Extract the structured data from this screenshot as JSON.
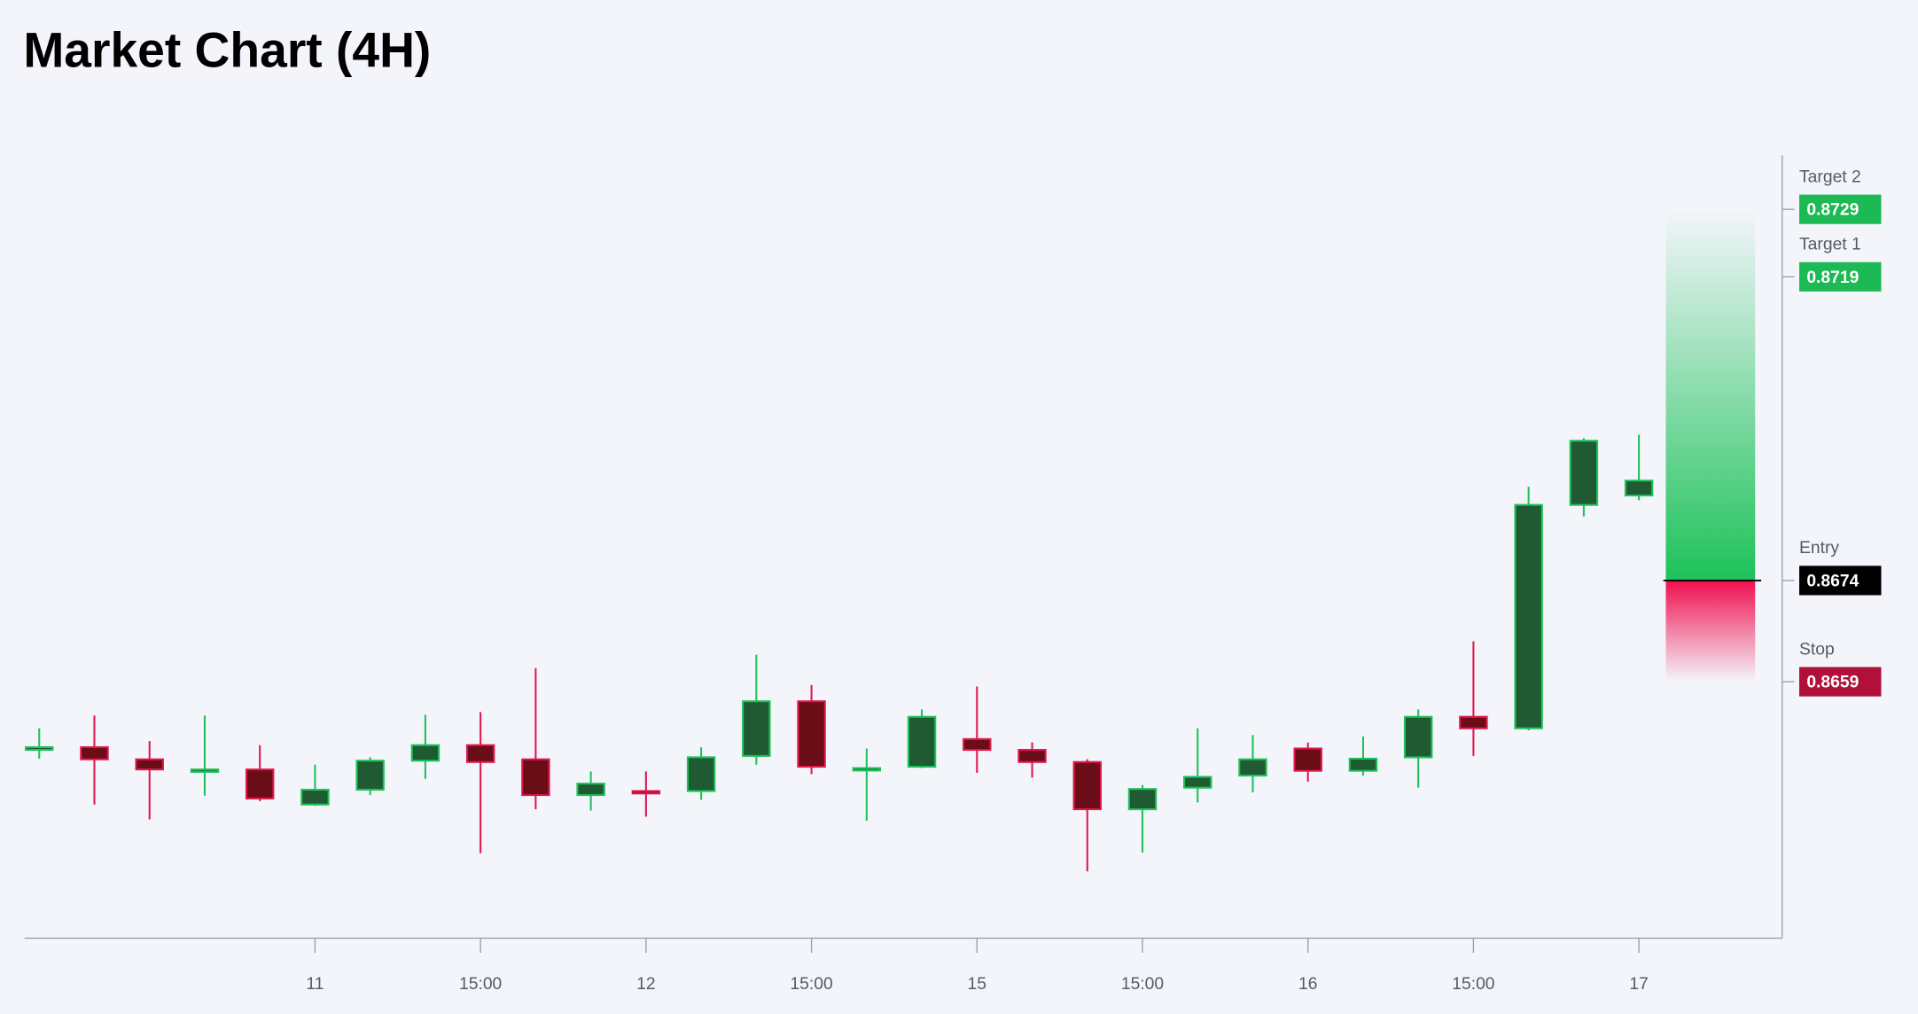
{
  "chart_data": {
    "type": "candlestick",
    "title": "Market Chart (4H)",
    "categories": [
      null,
      null,
      null,
      null,
      null,
      "11",
      null,
      null,
      "15:00",
      null,
      null,
      "12",
      null,
      null,
      "15:00",
      null,
      null,
      "15",
      null,
      null,
      "15:00",
      null,
      null,
      "16",
      null,
      null,
      "15:00",
      null,
      null,
      "17"
    ],
    "open": [
      0.86489,
      0.86493,
      0.86475,
      0.86458,
      0.8646,
      0.86408,
      0.8643,
      0.86473,
      0.86496,
      0.86475,
      0.86422,
      0.86428,
      0.86428,
      0.8648,
      0.86561,
      0.8646,
      0.86464,
      0.86505,
      0.86489,
      0.86471,
      0.86401,
      0.86433,
      0.86451,
      0.86491,
      0.86458,
      0.86478,
      0.86538,
      0.86521,
      0.86852,
      0.86866
    ],
    "high": [
      0.86521,
      0.8654,
      0.86502,
      0.8654,
      0.86496,
      0.86467,
      0.86478,
      0.86541,
      0.86545,
      0.8661,
      0.86457,
      0.86457,
      0.86493,
      0.8663,
      0.86585,
      0.86491,
      0.86549,
      0.86583,
      0.865,
      0.86475,
      0.86437,
      0.86521,
      0.86511,
      0.865,
      0.86509,
      0.86549,
      0.8665,
      0.86879,
      0.86951,
      0.86956
    ],
    "low": [
      0.86476,
      0.86408,
      0.86386,
      0.86421,
      0.86413,
      0.86406,
      0.86422,
      0.86446,
      0.86336,
      0.86401,
      0.86399,
      0.8639,
      0.86415,
      0.86467,
      0.86453,
      0.86384,
      0.86462,
      0.86455,
      0.86448,
      0.86309,
      0.86337,
      0.86411,
      0.86426,
      0.86442,
      0.86451,
      0.86433,
      0.8648,
      0.86518,
      0.86835,
      0.86859
    ],
    "close": [
      0.86493,
      0.86475,
      0.8646,
      0.8646,
      0.86417,
      0.8643,
      0.86473,
      0.86496,
      0.86471,
      0.86422,
      0.86439,
      0.86426,
      0.86478,
      0.86561,
      0.86464,
      0.86462,
      0.86538,
      0.86489,
      0.86471,
      0.86401,
      0.86431,
      0.86449,
      0.86475,
      0.86458,
      0.86476,
      0.86538,
      0.86521,
      0.86852,
      0.86947,
      0.86888
    ],
    "up_color": "#1ec25a",
    "up_fill": "#1f5a32",
    "down_color": "#e0174f",
    "down_fill": "#6b0d16",
    "ylim": [
      0.8621,
      0.8737
    ],
    "levels": [
      {
        "name": "Target 2",
        "value": 0.8729,
        "color": "#1db954"
      },
      {
        "name": "Target 1",
        "value": 0.8719,
        "color": "#1db954"
      },
      {
        "name": "Entry",
        "value": 0.8674,
        "color": "#000000"
      },
      {
        "name": "Stop",
        "value": 0.8659,
        "color": "#b0103a"
      }
    ]
  }
}
